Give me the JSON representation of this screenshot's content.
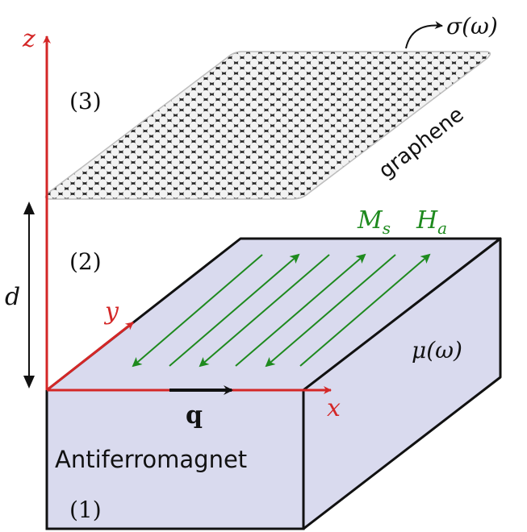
{
  "colors": {
    "block_fill": "#d9daee",
    "block_stroke": "#111111",
    "axis": "#d42727",
    "field_arrows": "#1e8a1e",
    "graphene_fill": "#2b2b2b",
    "graphene_hole": "#f2f2f2",
    "text": "#111111",
    "green_text": "#1e8a1e",
    "red_text": "#d42727"
  },
  "labels": {
    "z_axis": "z",
    "y_axis": "y",
    "x_axis": "x",
    "q_vector": "q",
    "distance": "d",
    "region_3": "(3)",
    "region_2": "(2)",
    "region_1": "(1)",
    "graphene": "graphene",
    "sigma": "σ(ω)",
    "mu": "μ(ω)",
    "ms": "M",
    "ms_sub": "s",
    "ha": "H",
    "ha_sub": "a",
    "material": "Antiferromagnet"
  },
  "icons": {
    "graphene_sheet": "honeycomb-lattice-icon",
    "sigma_pointer": "curved-arrow-icon"
  }
}
